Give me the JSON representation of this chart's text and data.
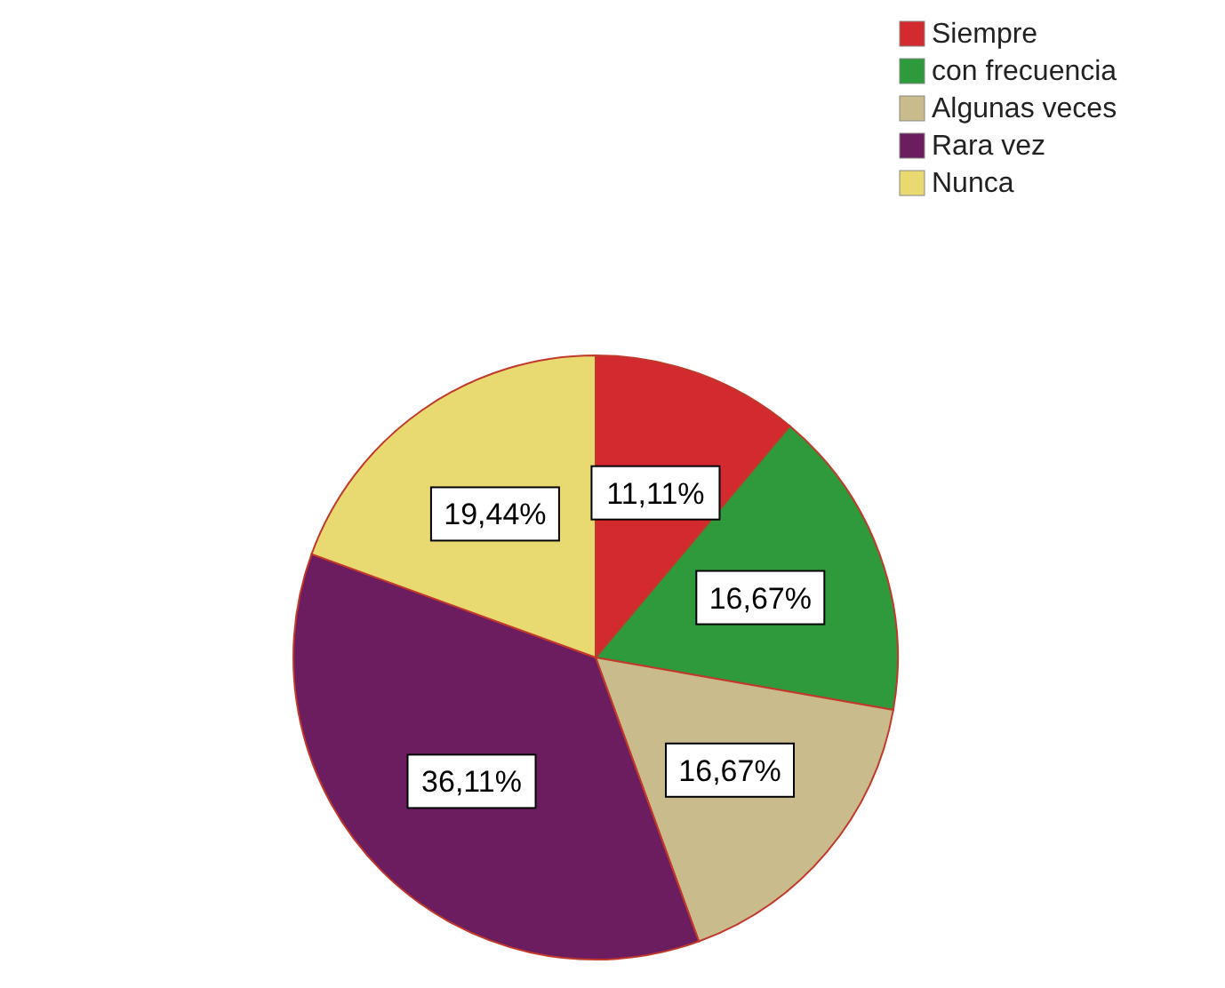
{
  "chart_data": {
    "type": "pie",
    "categories": [
      "Siempre",
      "con frecuencia",
      "Algunas veces",
      "Rara vez",
      "Nunca"
    ],
    "values": [
      11.11,
      16.67,
      16.67,
      36.11,
      19.44
    ],
    "colors": [
      "#d22a2e",
      "#2f9a3c",
      "#c9bb8c",
      "#6c1d60",
      "#e8d970"
    ],
    "value_labels": [
      "11,11%",
      "16,67%",
      "16,67%",
      "36,11%",
      "19,44%"
    ],
    "legend": "top right"
  }
}
